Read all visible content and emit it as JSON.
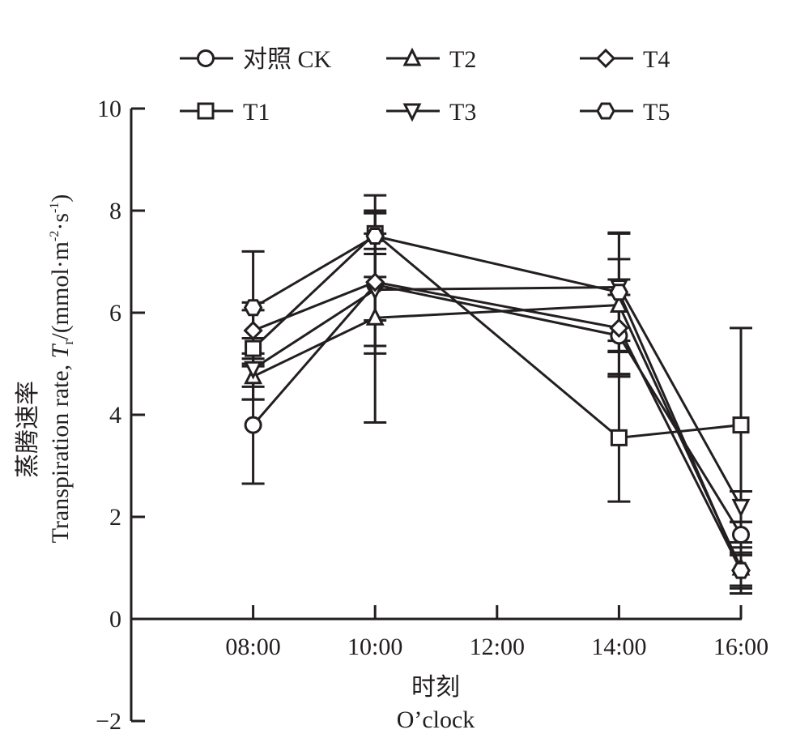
{
  "chart_data": {
    "type": "line",
    "title": "",
    "xlabel": "时刻",
    "xlabel_en": "O’clock",
    "ylabel_cn": "蒸腾速率",
    "ylabel_en_prefix": "Transpiration rate, ",
    "ylabel_symbol": "T",
    "ylabel_symbol_sub": "r",
    "ylabel_unit_open": "/(mmol·m",
    "ylabel_unit_sup1": "-2",
    "ylabel_unit_mid": "·s",
    "ylabel_unit_sup2": "-1",
    "ylabel_unit_close": ")",
    "x_categories": [
      "08:00",
      "10:00",
      "12:00",
      "14:00",
      "16:00"
    ],
    "x_hours": [
      8,
      10,
      12,
      14,
      16
    ],
    "x_axis_start_hour": 6,
    "ylim": [
      -2,
      10
    ],
    "yticks": [
      -2,
      0,
      2,
      4,
      6,
      8,
      10
    ],
    "ytick_labels": [
      "−2",
      "0",
      "2",
      "4",
      "6",
      "8",
      "10"
    ],
    "grid": false,
    "legend_position": "top",
    "series": [
      {
        "name": "对照 CK",
        "marker": "circle",
        "x": [
          8,
          10,
          14,
          16
        ],
        "values": [
          3.8,
          6.55,
          5.55,
          1.65
        ],
        "errors": [
          1.15,
          0.7,
          0.8,
          0.25
        ]
      },
      {
        "name": "T1",
        "marker": "square",
        "x": [
          8,
          10,
          14,
          16
        ],
        "values": [
          5.3,
          7.55,
          3.55,
          3.8
        ],
        "errors": [
          0.75,
          0.4,
          1.25,
          1.9
        ]
      },
      {
        "name": "T2",
        "marker": "triangle-up",
        "x": [
          8,
          10,
          14,
          16
        ],
        "values": [
          4.75,
          5.9,
          6.15,
          1.0
        ],
        "errors": [
          0.45,
          2.05,
          0.9,
          0.5
        ]
      },
      {
        "name": "T3",
        "marker": "triangle-down",
        "x": [
          8,
          10,
          14,
          16
        ],
        "values": [
          4.9,
          6.45,
          6.5,
          2.2
        ],
        "errors": [
          0.6,
          1.1,
          1.05,
          0.3
        ]
      },
      {
        "name": "T4",
        "marker": "diamond",
        "x": [
          8,
          10,
          14,
          16
        ],
        "values": [
          5.65,
          6.6,
          5.7,
          0.95
        ],
        "errors": [
          0.55,
          1.4,
          0.95,
          0.35
        ]
      },
      {
        "name": "T5",
        "marker": "hexagon",
        "x": [
          8,
          10,
          14,
          16
        ],
        "values": [
          6.1,
          7.5,
          6.4,
          0.95
        ],
        "errors": [
          1.1,
          0.8,
          1.17,
          0.3
        ]
      }
    ]
  },
  "colors": {
    "ink": "#231f20",
    "background": "#ffffff"
  }
}
